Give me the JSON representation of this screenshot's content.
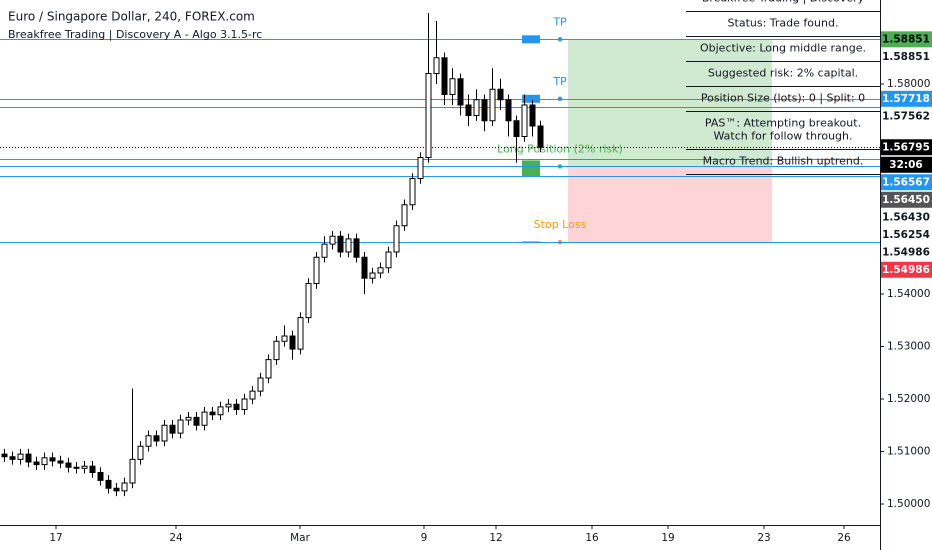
{
  "chart_data": {
    "type": "candlestick",
    "title": "Euro / Singapore Dollar, 240, FOREX.com",
    "subtitle": "Breakfree Trading | Discovery A - Algo 3.1.5-rc",
    "x": [
      1,
      3,
      5,
      7,
      9,
      11,
      13,
      15,
      17,
      19,
      21,
      23,
      25,
      27,
      29,
      31,
      33,
      35,
      37,
      39,
      41,
      43,
      45,
      47,
      49,
      51,
      53,
      55,
      57,
      59,
      61,
      63,
      65,
      67,
      69,
      71,
      73,
      75,
      77,
      79,
      81,
      83,
      85,
      87,
      89,
      91,
      93,
      95,
      97,
      99,
      101,
      103,
      105,
      107,
      109,
      111,
      113,
      115,
      117,
      119,
      121,
      123,
      125,
      127,
      129,
      131,
      133,
      135
    ],
    "open": [
      1.5095,
      1.509,
      1.5085,
      1.5095,
      1.508,
      1.5075,
      1.5088,
      1.5082,
      1.5078,
      1.507,
      1.5068,
      1.5072,
      1.506,
      1.5045,
      1.503,
      1.5025,
      1.504,
      1.5085,
      1.511,
      1.513,
      1.512,
      1.515,
      1.5135,
      1.516,
      1.5165,
      1.515,
      1.5175,
      1.517,
      1.5185,
      1.519,
      1.518,
      1.52,
      1.5215,
      1.524,
      1.5275,
      1.531,
      1.532,
      1.5295,
      1.5355,
      1.542,
      1.547,
      1.5495,
      1.551,
      1.548,
      1.5505,
      1.547,
      1.543,
      1.544,
      1.545,
      1.548,
      1.553,
      1.557,
      1.562,
      1.566,
      1.582,
      1.585,
      1.578,
      1.581,
      1.576,
      1.574,
      1.577,
      1.573,
      1.579,
      1.577,
      1.573,
      1.57,
      1.576,
      1.572
    ],
    "high": [
      1.5105,
      1.51,
      1.5105,
      1.5105,
      1.509,
      1.5098,
      1.5098,
      1.5092,
      1.5088,
      1.508,
      1.5082,
      1.5082,
      1.507,
      1.5055,
      1.504,
      1.505,
      1.522,
      1.512,
      1.514,
      1.514,
      1.516,
      1.516,
      1.517,
      1.5175,
      1.5175,
      1.5185,
      1.5185,
      1.5195,
      1.52,
      1.52,
      1.521,
      1.5225,
      1.525,
      1.5285,
      1.532,
      1.534,
      1.533,
      1.5365,
      1.543,
      1.548,
      1.551,
      1.552,
      1.552,
      1.5515,
      1.5515,
      1.548,
      1.545,
      1.546,
      1.549,
      1.554,
      1.558,
      1.563,
      1.567,
      1.5935,
      1.592,
      1.586,
      1.583,
      1.582,
      1.578,
      1.579,
      1.578,
      1.583,
      1.581,
      1.578,
      1.574,
      1.578,
      1.577,
      1.573
    ],
    "low": [
      1.508,
      1.5075,
      1.5075,
      1.507,
      1.5065,
      1.5065,
      1.5072,
      1.5068,
      1.506,
      1.5058,
      1.5058,
      1.505,
      1.5035,
      1.502,
      1.5015,
      1.5015,
      1.503,
      1.5075,
      1.51,
      1.511,
      1.511,
      1.5125,
      1.5125,
      1.515,
      1.514,
      1.514,
      1.516,
      1.516,
      1.5175,
      1.517,
      1.517,
      1.519,
      1.5205,
      1.523,
      1.5265,
      1.53,
      1.5275,
      1.5285,
      1.5345,
      1.541,
      1.546,
      1.5485,
      1.547,
      1.547,
      1.546,
      1.54,
      1.542,
      1.543,
      1.544,
      1.547,
      1.552,
      1.556,
      1.561,
      1.565,
      1.58,
      1.576,
      1.576,
      1.574,
      1.572,
      1.573,
      1.571,
      1.572,
      1.575,
      1.57,
      1.565,
      1.569,
      1.57,
      1.567
    ],
    "close": [
      1.509,
      1.5085,
      1.5095,
      1.508,
      1.5075,
      1.5088,
      1.5082,
      1.5078,
      1.507,
      1.5068,
      1.5072,
      1.506,
      1.5045,
      1.503,
      1.5025,
      1.504,
      1.5085,
      1.511,
      1.513,
      1.512,
      1.515,
      1.5135,
      1.516,
      1.5165,
      1.515,
      1.5175,
      1.517,
      1.5185,
      1.519,
      1.518,
      1.52,
      1.5215,
      1.524,
      1.5275,
      1.531,
      1.532,
      1.5295,
      1.5355,
      1.542,
      1.547,
      1.5495,
      1.551,
      1.548,
      1.5505,
      1.547,
      1.543,
      1.544,
      1.545,
      1.548,
      1.553,
      1.557,
      1.562,
      1.566,
      1.582,
      1.585,
      1.578,
      1.581,
      1.576,
      1.574,
      1.577,
      1.573,
      1.579,
      1.577,
      1.573,
      1.57,
      1.576,
      1.572,
      1.56795
    ],
    "up_color": "#ffffff",
    "down_color": "#000000",
    "outline_color": "#000000",
    "xlim": [
      0,
      220
    ],
    "ylim": [
      1.496,
      1.596
    ],
    "xticks": [
      {
        "value": 14,
        "label": "17"
      },
      {
        "value": 44,
        "label": "24"
      },
      {
        "value": 75,
        "label": "Mar"
      },
      {
        "value": 106,
        "label": "9"
      },
      {
        "value": 124,
        "label": "12"
      },
      {
        "value": 148,
        "label": "16"
      },
      {
        "value": 167,
        "label": "19"
      },
      {
        "value": 191,
        "label": "23"
      },
      {
        "value": 211,
        "label": "26"
      }
    ],
    "yticks": [
      {
        "value": 1.58,
        "label": "1.58000"
      },
      {
        "value": 1.54,
        "label": "1.54000"
      },
      {
        "value": 1.53,
        "label": "1.53000"
      },
      {
        "value": 1.52,
        "label": "1.52000"
      },
      {
        "value": 1.51,
        "label": "1.51000"
      },
      {
        "value": 1.5,
        "label": "1.50000"
      }
    ],
    "level_lines": [
      1.58851,
      1.57718,
      1.57562,
      1.56567,
      1.5643,
      1.56254,
      1.54986
    ],
    "level_color": "#2196f3",
    "current_price": 1.56795,
    "countdown": "32:06",
    "price_labels": [
      {
        "value": 1.58851,
        "label": "1.58851",
        "background": "#4caf50",
        "text_color": "#000000"
      },
      {
        "value": 1.58851,
        "label": "1.58851",
        "background": "#ffffff",
        "text_color": "#131722"
      },
      {
        "value": 1.57718,
        "label": "1.57718",
        "background": "#2196f3",
        "text_color": "#ffffff"
      },
      {
        "value": 1.57562,
        "label": "1.57562",
        "background": "#ffffff",
        "text_color": "#131722"
      },
      {
        "value": 1.56795,
        "label": "1.56795",
        "background": "#000000",
        "text_color": "#ffffff"
      },
      {
        "value": 1.56567,
        "label": "1.56567",
        "background": "#2196f3",
        "text_color": "#ffffff"
      },
      {
        "value": 1.5645,
        "label": "1.56450",
        "background": "#555555",
        "text_color": "#ffffff"
      },
      {
        "value": 1.5643,
        "label": "1.56430",
        "background": "#ffffff",
        "text_color": "#131722"
      },
      {
        "value": 1.56254,
        "label": "1.56254",
        "background": "#ffffff",
        "text_color": "#131722"
      },
      {
        "value": 1.54986,
        "label": "1.54986",
        "background": "#ffffff",
        "text_color": "#131722"
      },
      {
        "value": 1.54986,
        "label": "1.54986",
        "background": "#f23645",
        "text_color": "#ffffff"
      }
    ],
    "position": {
      "x_start": 142,
      "x_end": 193,
      "target": 1.58851,
      "target_label": "TP",
      "target2": 1.57718,
      "target2_label": "TP",
      "entry": 1.5643,
      "entry_label": "Long Position (2% risk)",
      "stop": 1.54986,
      "stop_label": "Stop Loss",
      "target_color": "#2196f3",
      "entry_color": "#4caf50",
      "stop_color": "#ff9800",
      "profit_fill": "#c8e6c9",
      "loss_fill": "#ffcdd2"
    },
    "info_panel": [
      [
        "Breakfree Trading | Discovery"
      ],
      [
        "Status: Trade found."
      ],
      [
        "Objective: Long middle range."
      ],
      [
        "Suggested risk: 2% capital."
      ],
      [
        "Position Size (lots): 0 | Split: 0"
      ],
      [
        "PAS™: Attempting breakout.",
        "Watch for follow through."
      ],
      [
        "Macro Trend: Bullish uptrend."
      ]
    ]
  }
}
